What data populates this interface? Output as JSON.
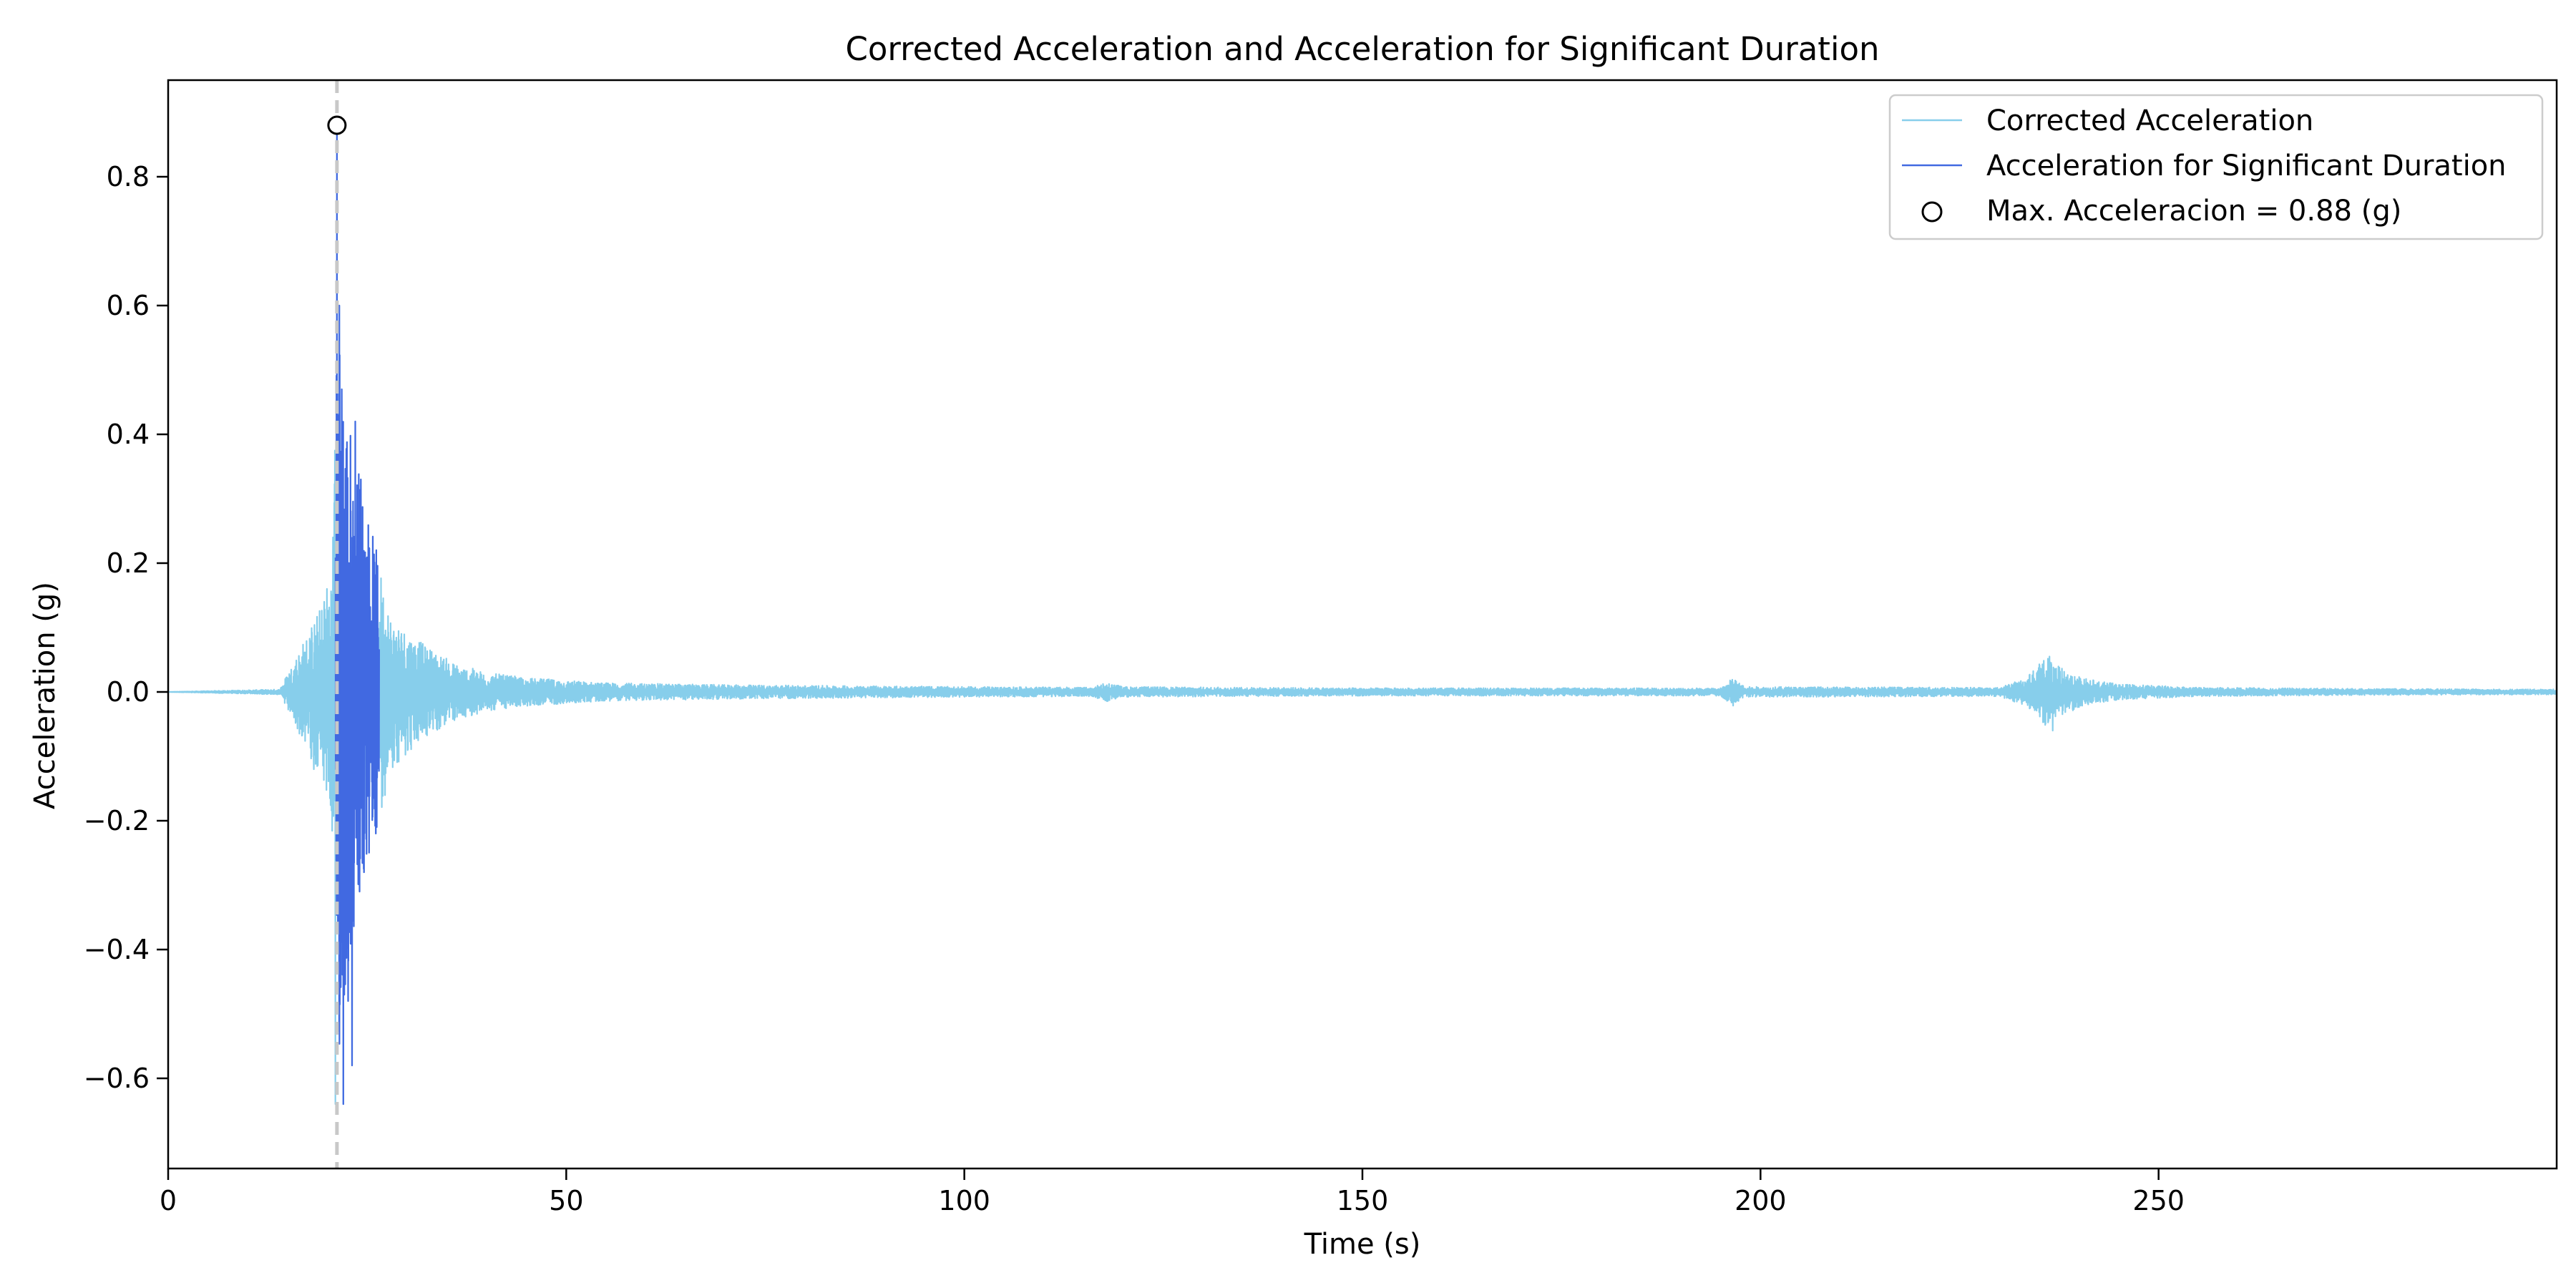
{
  "chart_data": {
    "type": "line",
    "title": "Corrected Acceleration and Acceleration for Significant Duration",
    "xlabel": "Time (s)",
    "ylabel": "Acceleration (g)",
    "xlim": [
      0,
      300
    ],
    "ylim": [
      -0.74,
      0.95
    ],
    "x_ticks": [
      0,
      50,
      100,
      150,
      200,
      250
    ],
    "x_tick_labels": [
      "0",
      "50",
      "100",
      "150",
      "200",
      "250"
    ],
    "y_ticks": [
      -0.6,
      -0.4,
      -0.2,
      0.0,
      0.2,
      0.4,
      0.6,
      0.8
    ],
    "y_tick_labels": [
      "−0.6",
      "−0.4",
      "−0.2",
      "0.0",
      "0.2",
      "0.4",
      "0.6",
      "0.8"
    ],
    "grid": false,
    "legend_position": "top-right",
    "series": [
      {
        "name": "Corrected Acceleration",
        "color": "#87ceeb",
        "envelope": [
          {
            "t": 0,
            "a": 0.0
          },
          {
            "t": 14,
            "a": 0.004
          },
          {
            "t": 15,
            "a": 0.03
          },
          {
            "t": 17,
            "a": 0.08
          },
          {
            "t": 19,
            "a": 0.13
          },
          {
            "t": 20.5,
            "a": 0.2
          },
          {
            "t": 21.3,
            "a": 0.6
          },
          {
            "t": 22.5,
            "a": 0.45
          },
          {
            "t": 24,
            "a": 0.35
          },
          {
            "t": 26.5,
            "a": 0.2
          },
          {
            "t": 28,
            "a": 0.12
          },
          {
            "t": 32,
            "a": 0.075
          },
          {
            "t": 36,
            "a": 0.045
          },
          {
            "t": 40,
            "a": 0.03
          },
          {
            "t": 45,
            "a": 0.022
          },
          {
            "t": 55,
            "a": 0.014
          },
          {
            "t": 70,
            "a": 0.011
          },
          {
            "t": 100,
            "a": 0.008
          },
          {
            "t": 116,
            "a": 0.007
          },
          {
            "t": 118,
            "a": 0.015
          },
          {
            "t": 120,
            "a": 0.008
          },
          {
            "t": 150,
            "a": 0.006
          },
          {
            "t": 195,
            "a": 0.006
          },
          {
            "t": 196.5,
            "a": 0.022
          },
          {
            "t": 198,
            "a": 0.008
          },
          {
            "t": 230,
            "a": 0.007
          },
          {
            "t": 233,
            "a": 0.02
          },
          {
            "t": 236,
            "a": 0.055
          },
          {
            "t": 238,
            "a": 0.035
          },
          {
            "t": 241,
            "a": 0.02
          },
          {
            "t": 245,
            "a": 0.012
          },
          {
            "t": 255,
            "a": 0.007
          },
          {
            "t": 275,
            "a": 0.005
          },
          {
            "t": 300,
            "a": 0.004
          }
        ],
        "peaks": [
          {
            "t": 21.2,
            "a": 0.88
          },
          {
            "t": 21.0,
            "a": -0.64
          },
          {
            "t": 21.5,
            "a": 0.6
          },
          {
            "t": 22.0,
            "a": -0.64
          },
          {
            "t": 21.8,
            "a": 0.47
          },
          {
            "t": 23.5,
            "a": 0.42
          },
          {
            "t": 24.2,
            "a": 0.33
          },
          {
            "t": 23.1,
            "a": -0.58
          },
          {
            "t": 22.6,
            "a": -0.48
          },
          {
            "t": 24.6,
            "a": -0.28
          },
          {
            "t": 18.3,
            "a": -0.12
          },
          {
            "t": 19.6,
            "a": 0.14
          },
          {
            "t": 236.3,
            "a": 0.055
          },
          {
            "t": 236.7,
            "a": -0.06
          }
        ]
      },
      {
        "name": "Acceleration for Significant Duration",
        "color": "#4169e1",
        "t_start": 21,
        "t_end": 26.5
      }
    ],
    "markers": [
      {
        "name": "Max. Acceleracion = 0.88 (g)",
        "t": 21.2,
        "a": 0.88
      }
    ],
    "reference_line": {
      "t": 21.2,
      "color": "#c8c8c8"
    }
  }
}
